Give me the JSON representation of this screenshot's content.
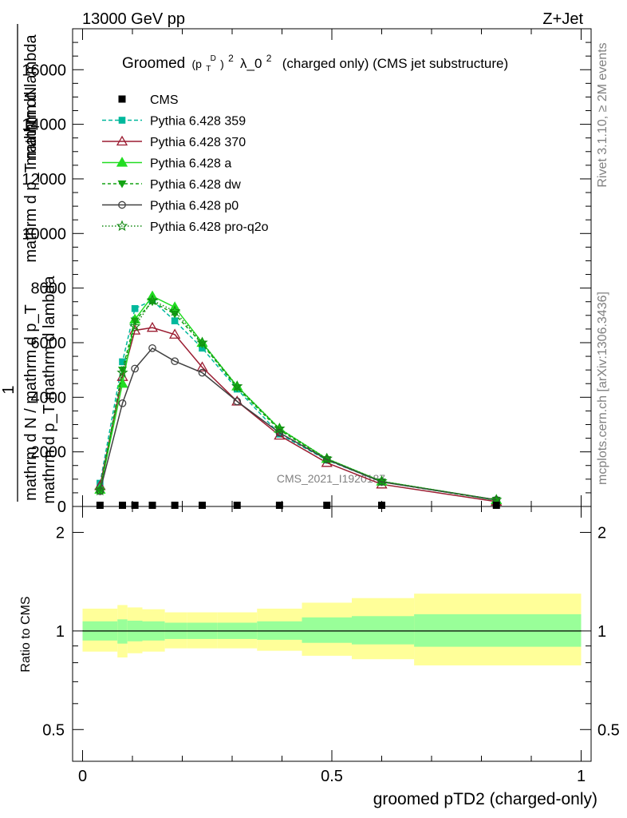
{
  "header": {
    "left": "13000 GeV pp",
    "right": "Z+Jet"
  },
  "side_labels": {
    "rivet": "Rivet 3.1.10, ≥ 2M events",
    "mcplots": "mcplots.cern.ch [arXiv:1306.3436]"
  },
  "watermark": "CMS_2021_I1920187",
  "chart_data": [
    {
      "type": "line",
      "title_parts": {
        "groomed": "Groomed",
        "p": "(p",
        "sub": "T",
        "sup": "D",
        "close": ")",
        "sq": "2",
        "lambda": "λ_0",
        "lsq": "2",
        "rest": "(charged only) (CMS jet substructure)"
      },
      "ylabel_parts": {
        "one": "1",
        "denominator": "mathrm d N / mathrm d p_T",
        "numerator": "mathrm d",
        "numerator_line2": "mathrm dN",
        "numerator_full": "mathrm d p_T mathrm d lambda",
        "denominator_full": "mathrm d p_T mathrm d lambda"
      },
      "xlim": [
        -0.02,
        1.02
      ],
      "ylim": [
        0,
        17500
      ],
      "yticks": [
        0,
        2000,
        4000,
        6000,
        8000,
        10000,
        12000,
        14000,
        16000
      ],
      "ytick_labels": [
        "0",
        "2000",
        "4000",
        "6000",
        "8000",
        "10000",
        "12000",
        "14000",
        "16000"
      ],
      "legend_position": "top-left",
      "data": {
        "name": "CMS",
        "x": [
          0.035,
          0.08,
          0.105,
          0.14,
          0.185,
          0.24,
          0.31,
          0.395,
          0.49,
          0.6,
          0.83
        ],
        "y": [
          0,
          0,
          0,
          0,
          0,
          0,
          0,
          0,
          0,
          0,
          0
        ]
      },
      "series": [
        {
          "name": "Pythia 6.428 359",
          "color": "#00b89c",
          "dash": "5,3",
          "marker": "square",
          "x": [
            0.035,
            0.08,
            0.105,
            0.14,
            0.185,
            0.24,
            0.31,
            0.395,
            0.49,
            0.6,
            0.83
          ],
          "y": [
            850,
            5300,
            7250,
            7550,
            6800,
            5800,
            4300,
            2650,
            1700,
            900,
            230
          ]
        },
        {
          "name": "Pythia 6.428 370",
          "color": "#9b1c31",
          "dash": "",
          "marker": "triangle-open",
          "x": [
            0.035,
            0.08,
            0.105,
            0.14,
            0.185,
            0.24,
            0.31,
            0.395,
            0.49,
            0.6,
            0.83
          ],
          "y": [
            750,
            4750,
            6450,
            6550,
            6300,
            5100,
            3850,
            2600,
            1600,
            810,
            180
          ]
        },
        {
          "name": "Pythia 6.428 a",
          "color": "#22dd22",
          "dash": "",
          "marker": "triangle",
          "x": [
            0.035,
            0.08,
            0.105,
            0.14,
            0.185,
            0.24,
            0.31,
            0.395,
            0.49,
            0.6,
            0.83
          ],
          "y": [
            620,
            4500,
            6850,
            7700,
            7300,
            6000,
            4400,
            2850,
            1750,
            920,
            240
          ]
        },
        {
          "name": "Pythia 6.428 dw",
          "color": "#13a313",
          "dash": "4,3",
          "marker": "triangle-down",
          "x": [
            0.035,
            0.08,
            0.105,
            0.14,
            0.185,
            0.24,
            0.31,
            0.395,
            0.49,
            0.6,
            0.83
          ],
          "y": [
            600,
            5000,
            6800,
            7500,
            7050,
            5950,
            4350,
            2800,
            1720,
            900,
            230
          ]
        },
        {
          "name": "Pythia 6.428 p0",
          "color": "#404040",
          "dash": "",
          "marker": "circle-open",
          "x": [
            0.035,
            0.08,
            0.105,
            0.14,
            0.185,
            0.24,
            0.31,
            0.395,
            0.49,
            0.6,
            0.83
          ],
          "y": [
            560,
            3780,
            5050,
            5800,
            5320,
            4900,
            3850,
            2700,
            1720,
            900,
            240
          ]
        },
        {
          "name": "Pythia 6.428 pro-q2o",
          "color": "#138a13",
          "dash": "1.5,2.5",
          "marker": "star",
          "x": [
            0.035,
            0.08,
            0.105,
            0.14,
            0.185,
            0.24,
            0.31,
            0.395,
            0.49,
            0.6,
            0.83
          ],
          "y": [
            580,
            4900,
            6600,
            7550,
            7150,
            6000,
            4400,
            2850,
            1750,
            920,
            240
          ]
        }
      ]
    },
    {
      "type": "area",
      "ylabel": "Ratio to CMS",
      "xlabel": "groomed pTD2 (charged-only)",
      "xlim": [
        -0.02,
        1.02
      ],
      "ylim": [
        0.4,
        2.4
      ],
      "log_y": true,
      "yticks": [
        0.5,
        1,
        2
      ],
      "ytick_labels": [
        "0.5",
        "1",
        "2"
      ],
      "xticks": [
        0,
        0.5,
        1
      ],
      "xtick_labels": [
        "0",
        "0.5",
        "1"
      ],
      "reference": 1,
      "band_colors": {
        "inner": "#99ff99",
        "outer": "#ffff99"
      },
      "bins": [
        0,
        0.07,
        0.09,
        0.12,
        0.165,
        0.21,
        0.27,
        0.35,
        0.44,
        0.54,
        0.665,
        1.0
      ],
      "inner_lo": [
        0.935,
        0.915,
        0.93,
        0.935,
        0.945,
        0.945,
        0.945,
        0.94,
        0.92,
        0.91,
        0.895
      ],
      "inner_hi": [
        1.07,
        1.085,
        1.075,
        1.07,
        1.06,
        1.06,
        1.06,
        1.07,
        1.1,
        1.11,
        1.125
      ],
      "outer_lo": [
        0.865,
        0.83,
        0.855,
        0.865,
        0.885,
        0.885,
        0.885,
        0.87,
        0.84,
        0.82,
        0.785
      ],
      "outer_hi": [
        1.17,
        1.2,
        1.18,
        1.165,
        1.14,
        1.14,
        1.14,
        1.17,
        1.22,
        1.26,
        1.3
      ]
    }
  ]
}
